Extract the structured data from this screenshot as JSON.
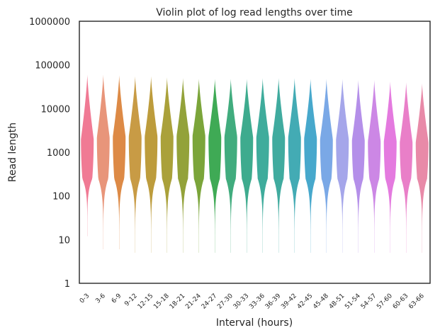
{
  "chart_data": {
    "type": "violin",
    "title": "Violin plot of log read lengths over time",
    "xlabel": "Interval (hours)",
    "ylabel": "Read length",
    "yscale": "log",
    "ylim": [
      1,
      1000000
    ],
    "yticks": [
      "1",
      "10",
      "100",
      "1000",
      "10000",
      "100000",
      "1000000"
    ],
    "grid": false,
    "categories": [
      "0-3",
      "3-6",
      "6-9",
      "9-12",
      "12-15",
      "15-18",
      "18-21",
      "21-24",
      "24-27",
      "27-30",
      "30-33",
      "33-36",
      "36-39",
      "39-42",
      "42-45",
      "45-48",
      "48-51",
      "51-54",
      "54-57",
      "57-60",
      "60-63",
      "63-66"
    ],
    "colors": [
      "#f07a94",
      "#e8957a",
      "#dd8a46",
      "#c89b45",
      "#bd9c3c",
      "#aaa13a",
      "#93a23a",
      "#7ba53a",
      "#3faa55",
      "#41ac7e",
      "#3eab8e",
      "#3fac9c",
      "#40ab9f",
      "#43abb4",
      "#47a8cc",
      "#7aa8e6",
      "#a5a6ea",
      "#b48fe9",
      "#cc87e5",
      "#e47adf",
      "#e97fc8",
      "#e88aa8"
    ],
    "series": [
      {
        "min": 12,
        "max": 60000,
        "median": 2000
      },
      {
        "min": 6,
        "max": 60000,
        "median": 2200
      },
      {
        "min": 6,
        "max": 58000,
        "median": 2300
      },
      {
        "min": 5,
        "max": 55000,
        "median": 2300
      },
      {
        "min": 5,
        "max": 55000,
        "median": 2300
      },
      {
        "min": 5,
        "max": 52000,
        "median": 2300
      },
      {
        "min": 5,
        "max": 50000,
        "median": 2400
      },
      {
        "min": 5,
        "max": 48000,
        "median": 2400
      },
      {
        "min": 5,
        "max": 48000,
        "median": 2300
      },
      {
        "min": 5,
        "max": 48000,
        "median": 2300
      },
      {
        "min": 5,
        "max": 48000,
        "median": 2200
      },
      {
        "min": 5,
        "max": 50000,
        "median": 2200
      },
      {
        "min": 5,
        "max": 50000,
        "median": 2200
      },
      {
        "min": 5,
        "max": 50000,
        "median": 2200
      },
      {
        "min": 5,
        "max": 48000,
        "median": 2100
      },
      {
        "min": 5,
        "max": 48000,
        "median": 2000
      },
      {
        "min": 5,
        "max": 48000,
        "median": 2000
      },
      {
        "min": 5,
        "max": 45000,
        "median": 1900
      },
      {
        "min": 5,
        "max": 45000,
        "median": 1800
      },
      {
        "min": 5,
        "max": 42000,
        "median": 1800
      },
      {
        "min": 5,
        "max": 40000,
        "median": 1700
      },
      {
        "min": 5,
        "max": 38000,
        "median": 1700
      }
    ]
  }
}
